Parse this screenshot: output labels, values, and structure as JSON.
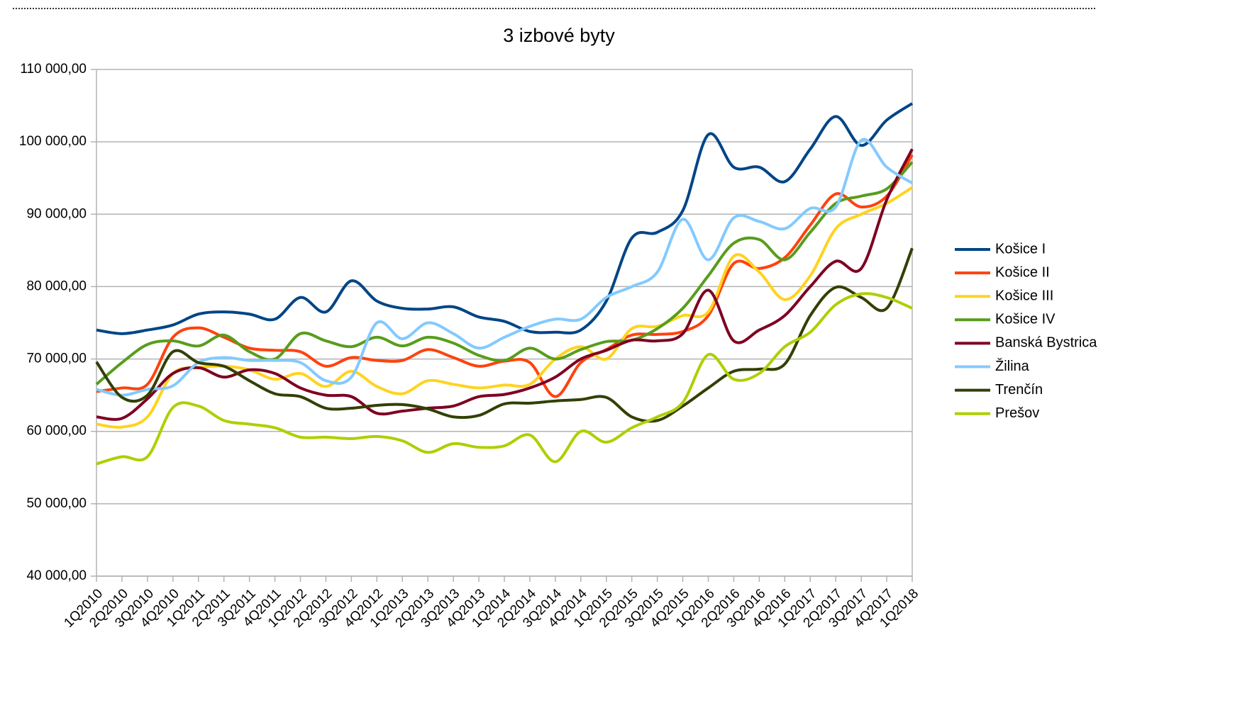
{
  "chart_data": {
    "type": "line",
    "title": "3 izbové byty",
    "categories": [
      "1Q2010",
      "2Q2010",
      "3Q2010",
      "4Q2010",
      "1Q2011",
      "2Q2011",
      "3Q2011",
      "4Q2011",
      "1Q2012",
      "2Q2012",
      "3Q2012",
      "4Q2012",
      "1Q2013",
      "2Q2013",
      "3Q2013",
      "4Q2013",
      "1Q2014",
      "2Q2014",
      "3Q2014",
      "4Q2014",
      "1Q2015",
      "2Q2015",
      "3Q2015",
      "4Q2015",
      "1Q2016",
      "2Q2016",
      "3Q2016",
      "4Q2016",
      "1Q2017",
      "2Q2017",
      "3Q2017",
      "4Q2017",
      "1Q2018"
    ],
    "series": [
      {
        "name": "Košice I",
        "color": "#004586",
        "values": [
          74000,
          73500,
          74000,
          74700,
          76200,
          76500,
          76200,
          75500,
          78500,
          76500,
          80800,
          78000,
          77000,
          76900,
          77200,
          75800,
          75200,
          73800,
          73700,
          74000,
          78000,
          86700,
          87500,
          90500,
          101000,
          96500,
          96500,
          94500,
          99000,
          103500,
          99500,
          103000,
          105300
        ]
      },
      {
        "name": "Košice II",
        "color": "#ff420e",
        "values": [
          65500,
          66000,
          66500,
          73000,
          74300,
          73000,
          71500,
          71200,
          71000,
          69000,
          70200,
          69800,
          69800,
          71300,
          70200,
          69000,
          69700,
          69500,
          64800,
          69500,
          71300,
          73300,
          73400,
          73800,
          76000,
          83200,
          82500,
          84000,
          88500,
          92800,
          91000,
          92500,
          98200
        ]
      },
      {
        "name": "Košice III",
        "color": "#ffd320",
        "values": [
          61000,
          60600,
          62000,
          68000,
          68800,
          69000,
          68500,
          67200,
          68000,
          66200,
          68300,
          66200,
          65200,
          67000,
          66500,
          66000,
          66400,
          66500,
          70000,
          71700,
          70000,
          74200,
          74500,
          76000,
          76500,
          84200,
          82000,
          78200,
          81500,
          88000,
          90000,
          91500,
          93700
        ]
      },
      {
        "name": "Košice IV",
        "color": "#579d1c",
        "values": [
          66500,
          69500,
          72000,
          72500,
          71800,
          73300,
          71000,
          70000,
          73500,
          72500,
          71700,
          73000,
          71800,
          73000,
          72200,
          70500,
          69800,
          71500,
          70000,
          71300,
          72400,
          72600,
          74200,
          77000,
          81500,
          86000,
          86500,
          83700,
          87500,
          91500,
          92500,
          93500,
          97200
        ]
      },
      {
        "name": "Banská Bystrica",
        "color": "#7e0021",
        "values": [
          62000,
          61800,
          64500,
          68000,
          68800,
          67500,
          68500,
          68000,
          66000,
          65000,
          64800,
          62500,
          62800,
          63200,
          63500,
          64800,
          65100,
          66000,
          67500,
          70000,
          71200,
          72600,
          72500,
          73500,
          79500,
          72500,
          74000,
          76000,
          80000,
          83500,
          82500,
          92000,
          99000
        ]
      },
      {
        "name": "Žilina",
        "color": "#83caff",
        "values": [
          65800,
          65000,
          65800,
          66300,
          69500,
          70200,
          69800,
          69800,
          69500,
          67000,
          67500,
          75000,
          72800,
          75000,
          73500,
          71500,
          73000,
          74500,
          75500,
          75500,
          78500,
          80000,
          82000,
          89300,
          83700,
          89500,
          89000,
          88000,
          90800,
          91000,
          100200,
          96500,
          94300
        ]
      },
      {
        "name": "Trenčín",
        "color": "#314004",
        "values": [
          69600,
          64700,
          65000,
          71000,
          69500,
          69000,
          67000,
          65200,
          64800,
          63200,
          63200,
          63600,
          63700,
          63100,
          62000,
          62200,
          63800,
          63900,
          64200,
          64400,
          64700,
          62000,
          61500,
          63500,
          66000,
          68300,
          68600,
          69300,
          76000,
          79900,
          78500,
          77000,
          85300
        ]
      },
      {
        "name": "Prešov",
        "color": "#aecf00",
        "values": [
          55500,
          56500,
          56500,
          63300,
          63500,
          61500,
          61000,
          60500,
          59200,
          59200,
          59000,
          59300,
          58700,
          57100,
          58300,
          57800,
          58000,
          59500,
          55800,
          60000,
          58500,
          60500,
          62000,
          64000,
          70600,
          67200,
          68000,
          71700,
          73700,
          77500,
          79000,
          78500,
          77000
        ]
      }
    ],
    "ylim": [
      40000,
      110000
    ],
    "yticks": [
      {
        "value": 40000,
        "label": "40 000,00"
      },
      {
        "value": 50000,
        "label": "50 000,00"
      },
      {
        "value": 60000,
        "label": "60 000,00"
      },
      {
        "value": 70000,
        "label": "70 000,00"
      },
      {
        "value": 80000,
        "label": "80 000,00"
      },
      {
        "value": 90000,
        "label": "90 000,00"
      },
      {
        "value": 100000,
        "label": "100 000,00"
      },
      {
        "value": 110000,
        "label": "110 000,00"
      }
    ],
    "grid": true,
    "smooth": true,
    "legend": "right"
  }
}
